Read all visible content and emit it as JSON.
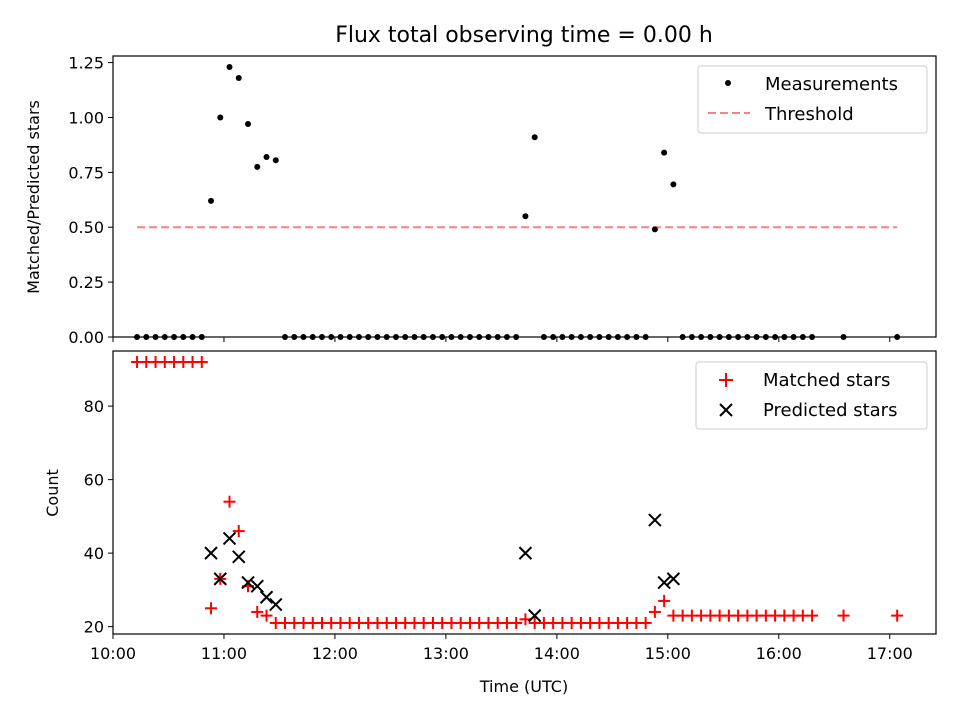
{
  "chart_data": [
    {
      "type": "scatter",
      "title": "Flux total observing time = 0.00 h",
      "xlabel": "",
      "ylabel": "Matched/Predicted stars",
      "xlim": [
        "10:00",
        "17:25"
      ],
      "ylim": [
        0,
        1.28
      ],
      "yticks": [
        0.0,
        0.25,
        0.5,
        0.75,
        1.0,
        1.25
      ],
      "ytick_labels": [
        "0.00",
        "0.25",
        "0.50",
        "0.75",
        "1.00",
        "1.25"
      ],
      "legend": "top-right",
      "series": [
        {
          "name": "Measurements",
          "style": "dot",
          "color": "#000000",
          "points": [
            [
              "10:13",
              0
            ],
            [
              "10:18",
              0
            ],
            [
              "10:23",
              0
            ],
            [
              "10:28",
              0
            ],
            [
              "10:33",
              0
            ],
            [
              "10:38",
              0
            ],
            [
              "10:43",
              0
            ],
            [
              "10:48",
              0
            ],
            [
              "10:53",
              0.62
            ],
            [
              "10:58",
              1.0
            ],
            [
              "11:03",
              1.23
            ],
            [
              "11:08",
              1.18
            ],
            [
              "11:13",
              0.97
            ],
            [
              "11:18",
              0.775
            ],
            [
              "11:23",
              0.82
            ],
            [
              "11:28",
              0.805
            ],
            [
              "11:33",
              0
            ],
            [
              "11:38",
              0
            ],
            [
              "11:43",
              0
            ],
            [
              "11:48",
              0
            ],
            [
              "11:53",
              0
            ],
            [
              "11:58",
              0
            ],
            [
              "12:03",
              0
            ],
            [
              "12:08",
              0
            ],
            [
              "12:13",
              0
            ],
            [
              "12:18",
              0
            ],
            [
              "12:23",
              0
            ],
            [
              "12:28",
              0
            ],
            [
              "12:33",
              0
            ],
            [
              "12:38",
              0
            ],
            [
              "12:43",
              0
            ],
            [
              "12:48",
              0
            ],
            [
              "12:53",
              0
            ],
            [
              "12:58",
              0
            ],
            [
              "13:03",
              0
            ],
            [
              "13:08",
              0
            ],
            [
              "13:13",
              0
            ],
            [
              "13:18",
              0
            ],
            [
              "13:23",
              0
            ],
            [
              "13:28",
              0
            ],
            [
              "13:33",
              0
            ],
            [
              "13:38",
              0
            ],
            [
              "13:43",
              0.55
            ],
            [
              "13:48",
              0.91
            ],
            [
              "13:53",
              0
            ],
            [
              "13:58",
              0
            ],
            [
              "14:03",
              0
            ],
            [
              "14:08",
              0
            ],
            [
              "14:13",
              0
            ],
            [
              "14:18",
              0
            ],
            [
              "14:23",
              0
            ],
            [
              "14:28",
              0
            ],
            [
              "14:33",
              0
            ],
            [
              "14:38",
              0
            ],
            [
              "14:43",
              0
            ],
            [
              "14:48",
              0
            ],
            [
              "14:53",
              0.49
            ],
            [
              "14:58",
              0.84
            ],
            [
              "15:03",
              0.695
            ],
            [
              "15:08",
              0
            ],
            [
              "15:13",
              0
            ],
            [
              "15:18",
              0
            ],
            [
              "15:23",
              0
            ],
            [
              "15:28",
              0
            ],
            [
              "15:33",
              0
            ],
            [
              "15:38",
              0
            ],
            [
              "15:43",
              0
            ],
            [
              "15:48",
              0
            ],
            [
              "15:53",
              0
            ],
            [
              "15:58",
              0
            ],
            [
              "16:03",
              0
            ],
            [
              "16:08",
              0
            ],
            [
              "16:13",
              0
            ],
            [
              "16:18",
              0
            ],
            [
              "16:35",
              0
            ],
            [
              "17:04",
              0
            ]
          ]
        },
        {
          "name": "Threshold",
          "style": "dashed-line",
          "color": "#ff7f7f",
          "points": [
            [
              "10:13",
              0.5
            ],
            [
              "17:04",
              0.5
            ]
          ]
        }
      ]
    },
    {
      "type": "scatter",
      "title": "",
      "xlabel": "Time (UTC)",
      "ylabel": "Count",
      "xlim": [
        "10:00",
        "17:25"
      ],
      "ylim": [
        18,
        95
      ],
      "yticks": [
        20,
        40,
        60,
        80
      ],
      "ytick_labels": [
        "20",
        "40",
        "60",
        "80"
      ],
      "xticks": [
        "10:00",
        "11:00",
        "12:00",
        "13:00",
        "14:00",
        "15:00",
        "16:00",
        "17:00"
      ],
      "legend": "top-right",
      "series": [
        {
          "name": "Matched stars",
          "style": "plus",
          "color": "#ff0000",
          "points": [
            [
              "10:13",
              92
            ],
            [
              "10:18",
              92
            ],
            [
              "10:23",
              92
            ],
            [
              "10:28",
              92
            ],
            [
              "10:33",
              92
            ],
            [
              "10:38",
              92
            ],
            [
              "10:43",
              92
            ],
            [
              "10:48",
              92
            ],
            [
              "10:53",
              25
            ],
            [
              "10:58",
              33
            ],
            [
              "11:03",
              54
            ],
            [
              "11:08",
              46
            ],
            [
              "11:13",
              31
            ],
            [
              "11:18",
              24
            ],
            [
              "11:23",
              23
            ],
            [
              "11:28",
              21
            ],
            [
              "11:33",
              21
            ],
            [
              "11:38",
              21
            ],
            [
              "11:43",
              21
            ],
            [
              "11:48",
              21
            ],
            [
              "11:53",
              21
            ],
            [
              "11:58",
              21
            ],
            [
              "12:03",
              21
            ],
            [
              "12:08",
              21
            ],
            [
              "12:13",
              21
            ],
            [
              "12:18",
              21
            ],
            [
              "12:23",
              21
            ],
            [
              "12:28",
              21
            ],
            [
              "12:33",
              21
            ],
            [
              "12:38",
              21
            ],
            [
              "12:43",
              21
            ],
            [
              "12:48",
              21
            ],
            [
              "12:53",
              21
            ],
            [
              "12:58",
              21
            ],
            [
              "13:03",
              21
            ],
            [
              "13:08",
              21
            ],
            [
              "13:13",
              21
            ],
            [
              "13:18",
              21
            ],
            [
              "13:23",
              21
            ],
            [
              "13:28",
              21
            ],
            [
              "13:33",
              21
            ],
            [
              "13:38",
              21
            ],
            [
              "13:43",
              22
            ],
            [
              "13:48",
              21
            ],
            [
              "13:53",
              21
            ],
            [
              "13:58",
              21
            ],
            [
              "14:03",
              21
            ],
            [
              "14:08",
              21
            ],
            [
              "14:13",
              21
            ],
            [
              "14:18",
              21
            ],
            [
              "14:23",
              21
            ],
            [
              "14:28",
              21
            ],
            [
              "14:33",
              21
            ],
            [
              "14:38",
              21
            ],
            [
              "14:43",
              21
            ],
            [
              "14:48",
              21
            ],
            [
              "14:53",
              24
            ],
            [
              "14:58",
              27
            ],
            [
              "15:03",
              23
            ],
            [
              "15:08",
              23
            ],
            [
              "15:13",
              23
            ],
            [
              "15:18",
              23
            ],
            [
              "15:23",
              23
            ],
            [
              "15:28",
              23
            ],
            [
              "15:33",
              23
            ],
            [
              "15:38",
              23
            ],
            [
              "15:43",
              23
            ],
            [
              "15:48",
              23
            ],
            [
              "15:53",
              23
            ],
            [
              "15:58",
              23
            ],
            [
              "16:03",
              23
            ],
            [
              "16:08",
              23
            ],
            [
              "16:13",
              23
            ],
            [
              "16:18",
              23
            ],
            [
              "16:35",
              23
            ],
            [
              "17:04",
              23
            ]
          ]
        },
        {
          "name": "Predicted stars",
          "style": "x",
          "color": "#000000",
          "points": [
            [
              "10:53",
              40
            ],
            [
              "10:58",
              33
            ],
            [
              "11:03",
              44
            ],
            [
              "11:08",
              39
            ],
            [
              "11:13",
              32
            ],
            [
              "11:18",
              31
            ],
            [
              "11:23",
              28
            ],
            [
              "11:28",
              26
            ],
            [
              "13:43",
              40
            ],
            [
              "13:48",
              23
            ],
            [
              "14:53",
              49
            ],
            [
              "14:58",
              32
            ],
            [
              "15:03",
              33
            ]
          ]
        }
      ]
    }
  ]
}
